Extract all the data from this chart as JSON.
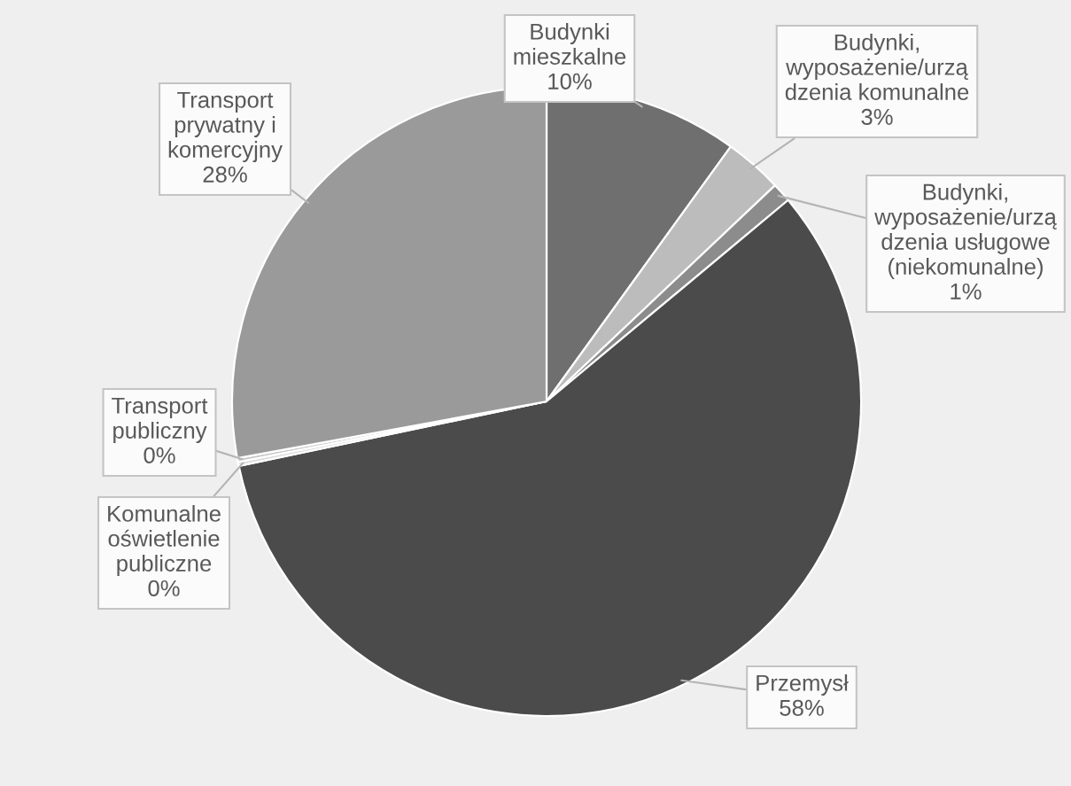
{
  "chart_data": {
    "type": "pie",
    "categories": [
      "Budynki\nmieszkalne",
      "Budynki,\nwyposażenie/urzą\ndzenia komunalne",
      "Budynki,\nwyposażenie/urzą\ndzenia usługowe\n(niekomunalne)",
      "Przemysł",
      "Komunalne\noświetlenie\npubliczne",
      "Transport\npubliczny",
      "Transport\nprywatny i\nkomercyjny"
    ],
    "values": [
      10,
      3,
      1,
      58,
      0.2,
      0.2,
      28
    ],
    "value_labels": [
      "10%",
      "3%",
      "1%",
      "58%",
      "0%",
      "0%",
      "28%"
    ],
    "colors": [
      "#6f6f6f",
      "#bcbcbc",
      "#8c8c8c",
      "#4b4b4b",
      "#dcdcdc",
      "#c8c8c8",
      "#9a9a9a"
    ]
  }
}
